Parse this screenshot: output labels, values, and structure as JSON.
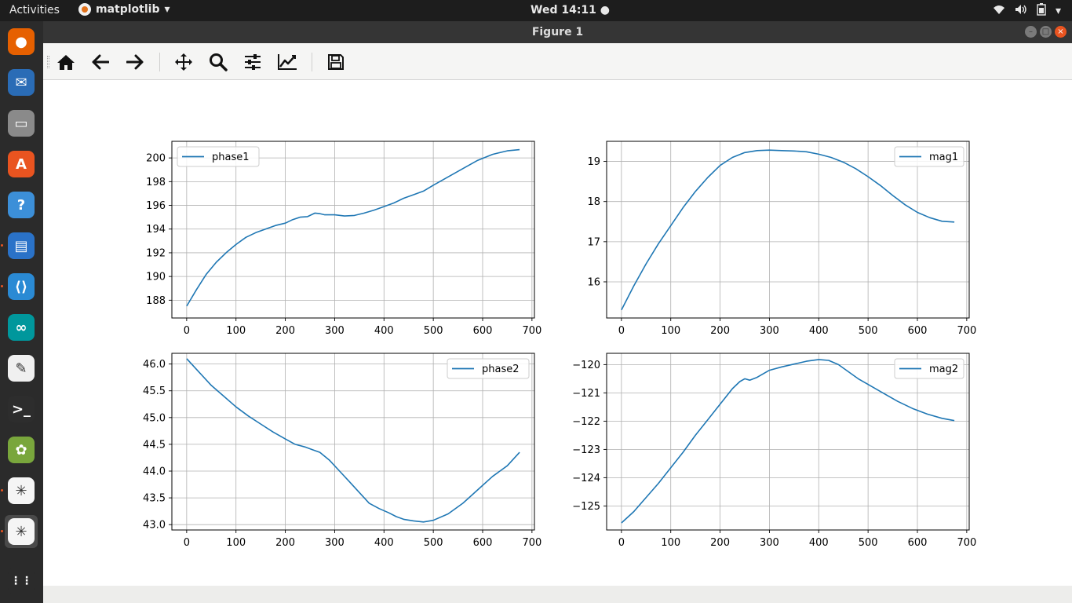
{
  "topbar": {
    "activities": "Activities",
    "app_name": "matplotlib",
    "clock": "Wed 14:11 ●"
  },
  "dock": {
    "items": [
      {
        "name": "firefox-icon",
        "color": "#e66000"
      },
      {
        "name": "thunderbird-icon",
        "color": "#2a6cb6"
      },
      {
        "name": "files-icon",
        "color": "#8a8a8a"
      },
      {
        "name": "software-center-icon",
        "color": "#e95420"
      },
      {
        "name": "help-icon",
        "color": "#3c8fd8"
      },
      {
        "name": "writer-icon",
        "color": "#2a72c8"
      },
      {
        "name": "vscode-icon",
        "color": "#2a8ad4"
      },
      {
        "name": "arduino-icon",
        "color": "#00979c"
      },
      {
        "name": "text-editor-icon",
        "color": "#f0f0f0"
      },
      {
        "name": "terminal-icon",
        "color": "#2d2d2d"
      },
      {
        "name": "image-viewer-icon",
        "color": "#79a63c"
      },
      {
        "name": "matplotlib-app-icon",
        "color": "#f5f5f5"
      },
      {
        "name": "matplotlib-app-icon-active",
        "color": "#f5f5f5"
      },
      {
        "name": "show-apps-icon",
        "color": "#2b2b2b"
      }
    ]
  },
  "window": {
    "title": "Figure 1"
  },
  "toolbar": {
    "buttons": [
      {
        "name": "home-icon"
      },
      {
        "name": "back-arrow-icon"
      },
      {
        "name": "forward-arrow-icon"
      },
      {
        "name": "pan-icon"
      },
      {
        "name": "zoom-icon"
      },
      {
        "name": "subplots-config-icon"
      },
      {
        "name": "edit-axes-icon"
      },
      {
        "name": "save-icon"
      }
    ]
  },
  "line_color": "#1f77b4",
  "chart_data": [
    {
      "type": "line",
      "legend": "phase1",
      "legend_loc": "upper-left",
      "xlim": [
        -30,
        705
      ],
      "ylim": [
        186.5,
        201.4
      ],
      "xticks": [
        0,
        100,
        200,
        300,
        400,
        500,
        600,
        700
      ],
      "yticks": [
        188,
        190,
        192,
        194,
        196,
        198,
        200
      ],
      "grid": true,
      "x": [
        0,
        20,
        40,
        60,
        80,
        100,
        120,
        140,
        160,
        180,
        200,
        215,
        230,
        245,
        260,
        270,
        280,
        300,
        320,
        340,
        360,
        380,
        400,
        420,
        440,
        460,
        480,
        500,
        530,
        560,
        590,
        620,
        650,
        675
      ],
      "y": [
        187.5,
        188.9,
        190.2,
        191.2,
        192.0,
        192.7,
        193.3,
        193.7,
        194.0,
        194.3,
        194.5,
        194.8,
        195.0,
        195.05,
        195.35,
        195.3,
        195.2,
        195.2,
        195.1,
        195.15,
        195.35,
        195.6,
        195.9,
        196.2,
        196.6,
        196.9,
        197.2,
        197.7,
        198.4,
        199.1,
        199.8,
        200.3,
        200.6,
        200.7
      ]
    },
    {
      "type": "line",
      "legend": "mag1",
      "legend_loc": "upper-right",
      "xlim": [
        -30,
        705
      ],
      "ylim": [
        15.1,
        19.5
      ],
      "xticks": [
        0,
        100,
        200,
        300,
        400,
        500,
        600,
        700
      ],
      "yticks": [
        16,
        17,
        18,
        19
      ],
      "grid": true,
      "x": [
        0,
        25,
        50,
        75,
        100,
        125,
        150,
        175,
        200,
        225,
        250,
        275,
        300,
        325,
        350,
        375,
        400,
        425,
        450,
        475,
        500,
        525,
        550,
        575,
        600,
        625,
        650,
        675
      ],
      "y": [
        15.3,
        15.9,
        16.45,
        16.95,
        17.4,
        17.85,
        18.25,
        18.6,
        18.9,
        19.1,
        19.22,
        19.27,
        19.28,
        19.27,
        19.26,
        19.24,
        19.18,
        19.1,
        18.98,
        18.82,
        18.62,
        18.4,
        18.15,
        17.92,
        17.73,
        17.6,
        17.51,
        17.49
      ]
    },
    {
      "type": "line",
      "legend": "phase2",
      "legend_loc": "upper-right",
      "xlim": [
        -30,
        705
      ],
      "ylim": [
        42.9,
        46.2
      ],
      "xticks": [
        0,
        100,
        200,
        300,
        400,
        500,
        600,
        700
      ],
      "yticks": [
        43.0,
        43.5,
        44.0,
        44.5,
        45.0,
        45.5,
        46.0
      ],
      "grid": true,
      "x": [
        0,
        25,
        50,
        75,
        100,
        125,
        150,
        175,
        200,
        220,
        240,
        255,
        270,
        290,
        310,
        330,
        350,
        370,
        390,
        410,
        425,
        440,
        460,
        480,
        500,
        530,
        560,
        590,
        620,
        650,
        675
      ],
      "y": [
        46.1,
        45.85,
        45.6,
        45.4,
        45.2,
        45.03,
        44.88,
        44.73,
        44.6,
        44.5,
        44.45,
        44.4,
        44.35,
        44.2,
        44.0,
        43.8,
        43.6,
        43.4,
        43.3,
        43.22,
        43.15,
        43.1,
        43.07,
        43.05,
        43.08,
        43.2,
        43.4,
        43.65,
        43.9,
        44.1,
        44.35
      ]
    },
    {
      "type": "line",
      "legend": "mag2",
      "legend_loc": "upper-right",
      "xlim": [
        -30,
        705
      ],
      "ylim": [
        -125.85,
        -119.6
      ],
      "xticks": [
        0,
        100,
        200,
        300,
        400,
        500,
        600,
        700
      ],
      "yticks": [
        -125,
        -124,
        -123,
        -122,
        -121,
        -120
      ],
      "grid": true,
      "x": [
        0,
        25,
        50,
        75,
        100,
        125,
        150,
        175,
        200,
        225,
        240,
        250,
        260,
        275,
        300,
        325,
        350,
        375,
        400,
        420,
        440,
        460,
        480,
        500,
        530,
        560,
        590,
        620,
        650,
        675
      ],
      "y": [
        -125.6,
        -125.2,
        -124.7,
        -124.2,
        -123.65,
        -123.1,
        -122.5,
        -121.95,
        -121.4,
        -120.85,
        -120.6,
        -120.5,
        -120.55,
        -120.45,
        -120.2,
        -120.08,
        -119.98,
        -119.88,
        -119.82,
        -119.85,
        -120.0,
        -120.25,
        -120.5,
        -120.7,
        -121.0,
        -121.3,
        -121.55,
        -121.75,
        -121.9,
        -121.98
      ]
    }
  ]
}
